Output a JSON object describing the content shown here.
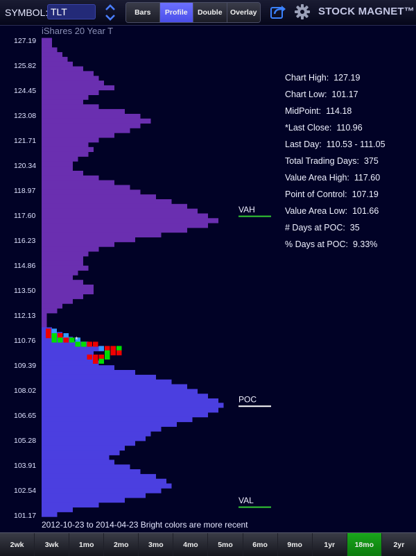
{
  "header": {
    "symbol_label": "SYMBOL:",
    "symbol_value": "TLT",
    "view_tabs": [
      {
        "label": "Bars",
        "active": false
      },
      {
        "label": "Profile",
        "active": true
      },
      {
        "label": "Double",
        "active": false
      },
      {
        "label": "Overlay",
        "active": false
      }
    ],
    "app_title": "STOCK MAGNET™",
    "icons": [
      "up-down-chevron-icon",
      "share-icon",
      "gear-icon"
    ]
  },
  "chart": {
    "subtitle": "iShares 20 Year T",
    "date_range_note": "2012-10-23 to 2014-04-23 Bright colors are more recent",
    "last_close_marker": "*",
    "markers": [
      {
        "label": "VAH",
        "price": 117.6,
        "color": "#33cc33"
      },
      {
        "label": "POC",
        "price": 107.19,
        "color": "#ffffff"
      },
      {
        "label": "VAL",
        "price": 101.66,
        "color": "#33cc33"
      }
    ]
  },
  "chart_data": {
    "type": "bar",
    "orientation": "horizontal",
    "title": "iShares 20 Year T",
    "y_ticks": [
      "127.19",
      "125.82",
      "124.45",
      "123.08",
      "121.71",
      "120.34",
      "118.97",
      "117.60",
      "116.23",
      "114.86",
      "113.50",
      "112.13",
      "110.76",
      "109.39",
      "108.02",
      "106.65",
      "105.28",
      "103.91",
      "102.54",
      "101.17"
    ],
    "ylim": [
      101.17,
      127.19
    ],
    "units": "trading days per price level",
    "colors": {
      "historical": "#4b3fe0",
      "recent": "#6a2fb0",
      "recent_up": "#00dd00",
      "recent_down": "#ee0000",
      "recent_neutral": "#3399ff"
    },
    "profile": [
      {
        "price": 127.19,
        "days": 2
      },
      {
        "price": 126.93,
        "days": 2
      },
      {
        "price": 126.67,
        "days": 3
      },
      {
        "price": 126.41,
        "days": 4
      },
      {
        "price": 126.15,
        "days": 5
      },
      {
        "price": 125.89,
        "days": 6
      },
      {
        "price": 125.63,
        "days": 8
      },
      {
        "price": 125.37,
        "days": 10
      },
      {
        "price": 125.11,
        "days": 11
      },
      {
        "price": 124.85,
        "days": 12
      },
      {
        "price": 124.59,
        "days": 14
      },
      {
        "price": 124.33,
        "days": 11
      },
      {
        "price": 124.07,
        "days": 9
      },
      {
        "price": 123.81,
        "days": 8
      },
      {
        "price": 123.55,
        "days": 11
      },
      {
        "price": 123.29,
        "days": 16
      },
      {
        "price": 123.03,
        "days": 19
      },
      {
        "price": 122.77,
        "days": 21
      },
      {
        "price": 122.51,
        "days": 19
      },
      {
        "price": 122.25,
        "days": 17
      },
      {
        "price": 121.99,
        "days": 14
      },
      {
        "price": 121.73,
        "days": 11
      },
      {
        "price": 121.47,
        "days": 9
      },
      {
        "price": 121.21,
        "days": 10
      },
      {
        "price": 120.95,
        "days": 9
      },
      {
        "price": 120.69,
        "days": 7
      },
      {
        "price": 120.43,
        "days": 6
      },
      {
        "price": 120.17,
        "days": 6
      },
      {
        "price": 119.91,
        "days": 8
      },
      {
        "price": 119.65,
        "days": 11
      },
      {
        "price": 119.39,
        "days": 14
      },
      {
        "price": 119.13,
        "days": 17
      },
      {
        "price": 118.87,
        "days": 19
      },
      {
        "price": 118.61,
        "days": 22
      },
      {
        "price": 118.35,
        "days": 25
      },
      {
        "price": 118.09,
        "days": 28
      },
      {
        "price": 117.83,
        "days": 30
      },
      {
        "price": 117.57,
        "days": 32
      },
      {
        "price": 117.31,
        "days": 34
      },
      {
        "price": 117.05,
        "days": 32
      },
      {
        "price": 116.79,
        "days": 28
      },
      {
        "price": 116.53,
        "days": 23
      },
      {
        "price": 116.27,
        "days": 18
      },
      {
        "price": 116.01,
        "days": 14
      },
      {
        "price": 115.75,
        "days": 11
      },
      {
        "price": 115.49,
        "days": 9
      },
      {
        "price": 115.23,
        "days": 8
      },
      {
        "price": 114.97,
        "days": 8
      },
      {
        "price": 114.71,
        "days": 9
      },
      {
        "price": 114.45,
        "days": 7
      },
      {
        "price": 114.19,
        "days": 6
      },
      {
        "price": 113.93,
        "days": 8
      },
      {
        "price": 113.67,
        "days": 10
      },
      {
        "price": 113.41,
        "days": 10
      },
      {
        "price": 113.15,
        "days": 8
      },
      {
        "price": 112.89,
        "days": 6
      },
      {
        "price": 112.63,
        "days": 4
      },
      {
        "price": 112.37,
        "days": 3
      },
      {
        "price": 112.11,
        "days": 1
      },
      {
        "price": 111.85,
        "days": 1
      },
      {
        "price": 111.59,
        "days": 1
      },
      {
        "price": 111.33,
        "days": 2
      },
      {
        "price": 111.07,
        "days": 4
      },
      {
        "price": 110.81,
        "days": 6
      },
      {
        "price": 110.55,
        "days": 9
      },
      {
        "price": 110.29,
        "days": 12
      },
      {
        "price": 110.03,
        "days": 10
      },
      {
        "price": 109.77,
        "days": 10
      },
      {
        "price": 109.51,
        "days": 11
      },
      {
        "price": 109.25,
        "days": 14
      },
      {
        "price": 108.99,
        "days": 18
      },
      {
        "price": 108.73,
        "days": 22
      },
      {
        "price": 108.47,
        "days": 25
      },
      {
        "price": 108.21,
        "days": 28
      },
      {
        "price": 107.95,
        "days": 30
      },
      {
        "price": 107.69,
        "days": 32
      },
      {
        "price": 107.43,
        "days": 34
      },
      {
        "price": 107.19,
        "days": 35
      },
      {
        "price": 106.93,
        "days": 34
      },
      {
        "price": 106.67,
        "days": 32
      },
      {
        "price": 106.41,
        "days": 29
      },
      {
        "price": 106.15,
        "days": 26
      },
      {
        "price": 105.89,
        "days": 23
      },
      {
        "price": 105.63,
        "days": 21
      },
      {
        "price": 105.37,
        "days": 20
      },
      {
        "price": 105.11,
        "days": 18
      },
      {
        "price": 104.85,
        "days": 16
      },
      {
        "price": 104.59,
        "days": 15
      },
      {
        "price": 104.33,
        "days": 13
      },
      {
        "price": 104.07,
        "days": 14
      },
      {
        "price": 103.81,
        "days": 17
      },
      {
        "price": 103.55,
        "days": 19
      },
      {
        "price": 103.29,
        "days": 22
      },
      {
        "price": 103.03,
        "days": 24
      },
      {
        "price": 102.77,
        "days": 25
      },
      {
        "price": 102.51,
        "days": 23
      },
      {
        "price": 102.25,
        "days": 20
      },
      {
        "price": 101.99,
        "days": 16
      },
      {
        "price": 101.73,
        "days": 11
      },
      {
        "price": 101.47,
        "days": 6
      },
      {
        "price": 101.21,
        "days": 3
      }
    ],
    "recent_cells": [
      {
        "price": 111.25,
        "level": 0,
        "color": "#ee0000"
      },
      {
        "price": 111.25,
        "level": 1,
        "color": "#3399ff"
      },
      {
        "price": 111.0,
        "level": 0,
        "color": "#ee0000"
      },
      {
        "price": 111.0,
        "level": 1,
        "color": "#00dd00"
      },
      {
        "price": 111.0,
        "level": 2,
        "color": "#ee0000"
      },
      {
        "price": 111.0,
        "level": 3,
        "color": "#3399ff"
      },
      {
        "price": 110.76,
        "level": 1,
        "color": "#00dd00"
      },
      {
        "price": 110.76,
        "level": 2,
        "color": "#00dd00"
      },
      {
        "price": 110.76,
        "level": 3,
        "color": "#ee0000"
      },
      {
        "price": 110.76,
        "level": 4,
        "color": "#00dd00"
      },
      {
        "price": 110.76,
        "level": 5,
        "color": "#3399ff"
      },
      {
        "price": 110.53,
        "level": 5,
        "color": "#00dd00"
      },
      {
        "price": 110.53,
        "level": 6,
        "color": "#00dd00"
      },
      {
        "price": 110.53,
        "level": 7,
        "color": "#ee0000"
      },
      {
        "price": 110.53,
        "level": 8,
        "color": "#ee0000"
      },
      {
        "price": 110.3,
        "level": 9,
        "color": "#3399ff"
      },
      {
        "price": 110.3,
        "level": 10,
        "color": "#ee0000"
      },
      {
        "price": 110.3,
        "level": 11,
        "color": "#ee0000"
      },
      {
        "price": 110.3,
        "level": 12,
        "color": "#00dd00"
      },
      {
        "price": 110.06,
        "level": 10,
        "color": "#00dd00"
      },
      {
        "price": 110.06,
        "level": 11,
        "color": "#ee0000"
      },
      {
        "price": 110.06,
        "level": 12,
        "color": "#ee0000"
      },
      {
        "price": 109.83,
        "level": 7,
        "color": "#ee0000"
      },
      {
        "price": 109.83,
        "level": 8,
        "color": "#ee0000"
      },
      {
        "price": 109.83,
        "level": 9,
        "color": "#ee0000"
      },
      {
        "price": 109.83,
        "level": 10,
        "color": "#00dd00"
      },
      {
        "price": 109.6,
        "level": 8,
        "color": "#ee0000"
      },
      {
        "price": 109.6,
        "level": 9,
        "color": "#00dd00"
      }
    ]
  },
  "stats": [
    {
      "label": "Chart High:",
      "value": "127.19"
    },
    {
      "label": "Chart Low:",
      "value": "101.17"
    },
    {
      "label": "MidPoint:",
      "value": "114.18"
    },
    {
      "label": "*Last Close:",
      "value": "110.96"
    },
    {
      "label": "Last Day:",
      "value": "110.53 - 111.05"
    },
    {
      "label": "Total Trading Days:",
      "value": "375"
    },
    {
      "label": "Value Area High:",
      "value": "117.60"
    },
    {
      "label": "Point of Control:",
      "value": "107.19"
    },
    {
      "label": "Value Area Low:",
      "value": "101.66"
    },
    {
      "label": "# Days at POC:",
      "value": "35"
    },
    {
      "label": "% Days at POC:",
      "value": "9.33%"
    }
  ],
  "ranges": [
    {
      "label": "2wk",
      "active": false
    },
    {
      "label": "3wk",
      "active": false
    },
    {
      "label": "1mo",
      "active": false
    },
    {
      "label": "2mo",
      "active": false
    },
    {
      "label": "3mo",
      "active": false
    },
    {
      "label": "4mo",
      "active": false
    },
    {
      "label": "5mo",
      "active": false
    },
    {
      "label": "6mo",
      "active": false
    },
    {
      "label": "9mo",
      "active": false
    },
    {
      "label": "1yr",
      "active": false
    },
    {
      "label": "18mo",
      "active": true
    },
    {
      "label": "2yr",
      "active": false
    }
  ]
}
